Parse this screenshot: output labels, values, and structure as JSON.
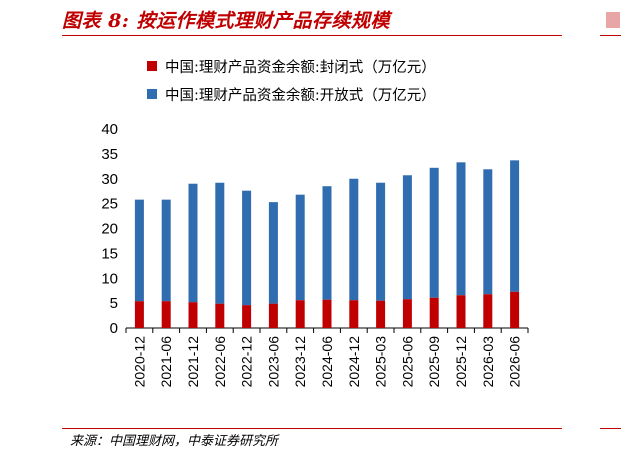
{
  "title": "图表 8:  按运作模式理财产品存续规模",
  "source": "来源：中国理财网，中泰证券研究所",
  "colors": {
    "closed": "#c00000",
    "open": "#2f6db0",
    "accent": "#c00000"
  },
  "chart_data": {
    "type": "bar",
    "stacked": true,
    "categories": [
      "2020-12",
      "2021-06",
      "2021-12",
      "2022-06",
      "2022-12",
      "2023-06",
      "2023-12",
      "2024-06",
      "2024-12",
      "2025-03",
      "2025-06",
      "2025-09",
      "2025-12",
      "2026-03",
      "2026-06"
    ],
    "series": [
      {
        "name": "中国:理财产品资金余额:封闭式（万亿元）",
        "values": [
          5.4,
          5.4,
          5.2,
          4.9,
          4.6,
          4.9,
          5.6,
          5.7,
          5.6,
          5.5,
          5.8,
          6.1,
          6.6,
          6.8,
          7.3
        ]
      },
      {
        "name": "中国:理财产品资金余额:开放式（万亿元）",
        "values": [
          20.4,
          20.4,
          23.8,
          24.3,
          23.0,
          20.4,
          21.2,
          22.8,
          24.4,
          23.7,
          24.9,
          26.1,
          26.7,
          25.1,
          26.4
        ]
      }
    ],
    "yticks": [
      0,
      5,
      10,
      15,
      20,
      25,
      30,
      35,
      40
    ],
    "ylim": [
      0,
      40
    ],
    "legend": "top"
  }
}
